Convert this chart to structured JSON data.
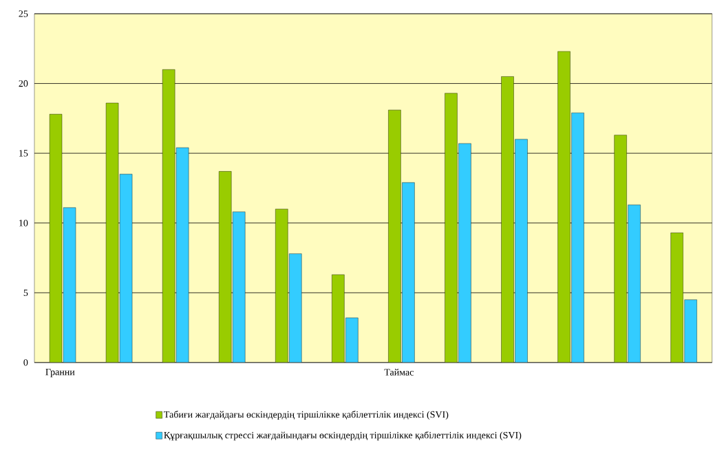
{
  "chart_data": {
    "type": "bar",
    "categories": [
      "Гранни",
      null,
      null,
      null,
      null,
      null,
      "Таймас",
      null,
      null,
      null,
      null,
      null
    ],
    "series": [
      {
        "name": "Табиғи жағдайдағы өскіндердің тіршілікке қабілеттілік индексі (SVI)",
        "color": "#99cc00",
        "values": [
          17.8,
          18.6,
          21.0,
          13.7,
          11.0,
          6.3,
          18.1,
          19.3,
          20.5,
          22.3,
          16.3,
          9.3
        ]
      },
      {
        "name": "Құрғақшылық стрессі жағдайындағы өскіндердің тіршілікке қабілеттілік индексі (SVI)",
        "color": "#33ccff",
        "values": [
          11.1,
          13.5,
          15.4,
          10.8,
          7.8,
          3.2,
          12.9,
          15.7,
          16.0,
          17.9,
          11.3,
          4.5
        ]
      }
    ],
    "ylim": [
      0,
      25
    ],
    "yticks": [
      0,
      5,
      10,
      15,
      20,
      25
    ],
    "grid": "y",
    "legend": "bottom"
  }
}
